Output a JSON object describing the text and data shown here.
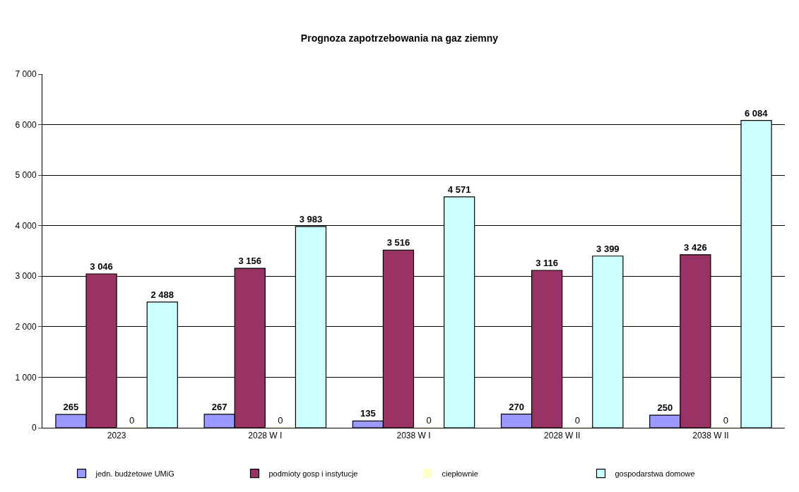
{
  "chart_data": {
    "type": "bar",
    "title": "Prognoza zapotrzebowania na gaz ziemny",
    "categories": [
      "2023",
      "2028 W I",
      "2038 W I",
      "2028 W II",
      "2038 W II"
    ],
    "series": [
      {
        "name": "jedn. budżetowe UMiG",
        "color": "#9999ff",
        "values": [
          265,
          267,
          135,
          270,
          250
        ]
      },
      {
        "name": "podmioty gosp i instytucje",
        "color": "#993366",
        "values": [
          3046,
          3156,
          3516,
          3116,
          3426
        ]
      },
      {
        "name": "ciepłownie",
        "color": "#ffffcc",
        "values": [
          0,
          0,
          0,
          0,
          0
        ]
      },
      {
        "name": "gospodarstwa domowe",
        "color": "#ccffff",
        "values": [
          2488,
          3983,
          4571,
          3399,
          6084
        ]
      }
    ],
    "ylim": [
      0,
      7000
    ],
    "yticks": [
      0,
      {
        "value": 1000,
        "label": "1 000"
      },
      {
        "value": 2000,
        "label": "2 000"
      },
      {
        "value": 3000,
        "label": "3 000"
      },
      {
        "value": 4000,
        "label": "4 000"
      },
      {
        "value": 5000,
        "label": "5 000"
      },
      {
        "value": 6000,
        "label": "6 000"
      },
      {
        "value": 7000,
        "label": "7 000"
      }
    ],
    "grid": "y",
    "legend": "bottom",
    "data_labels": true
  }
}
